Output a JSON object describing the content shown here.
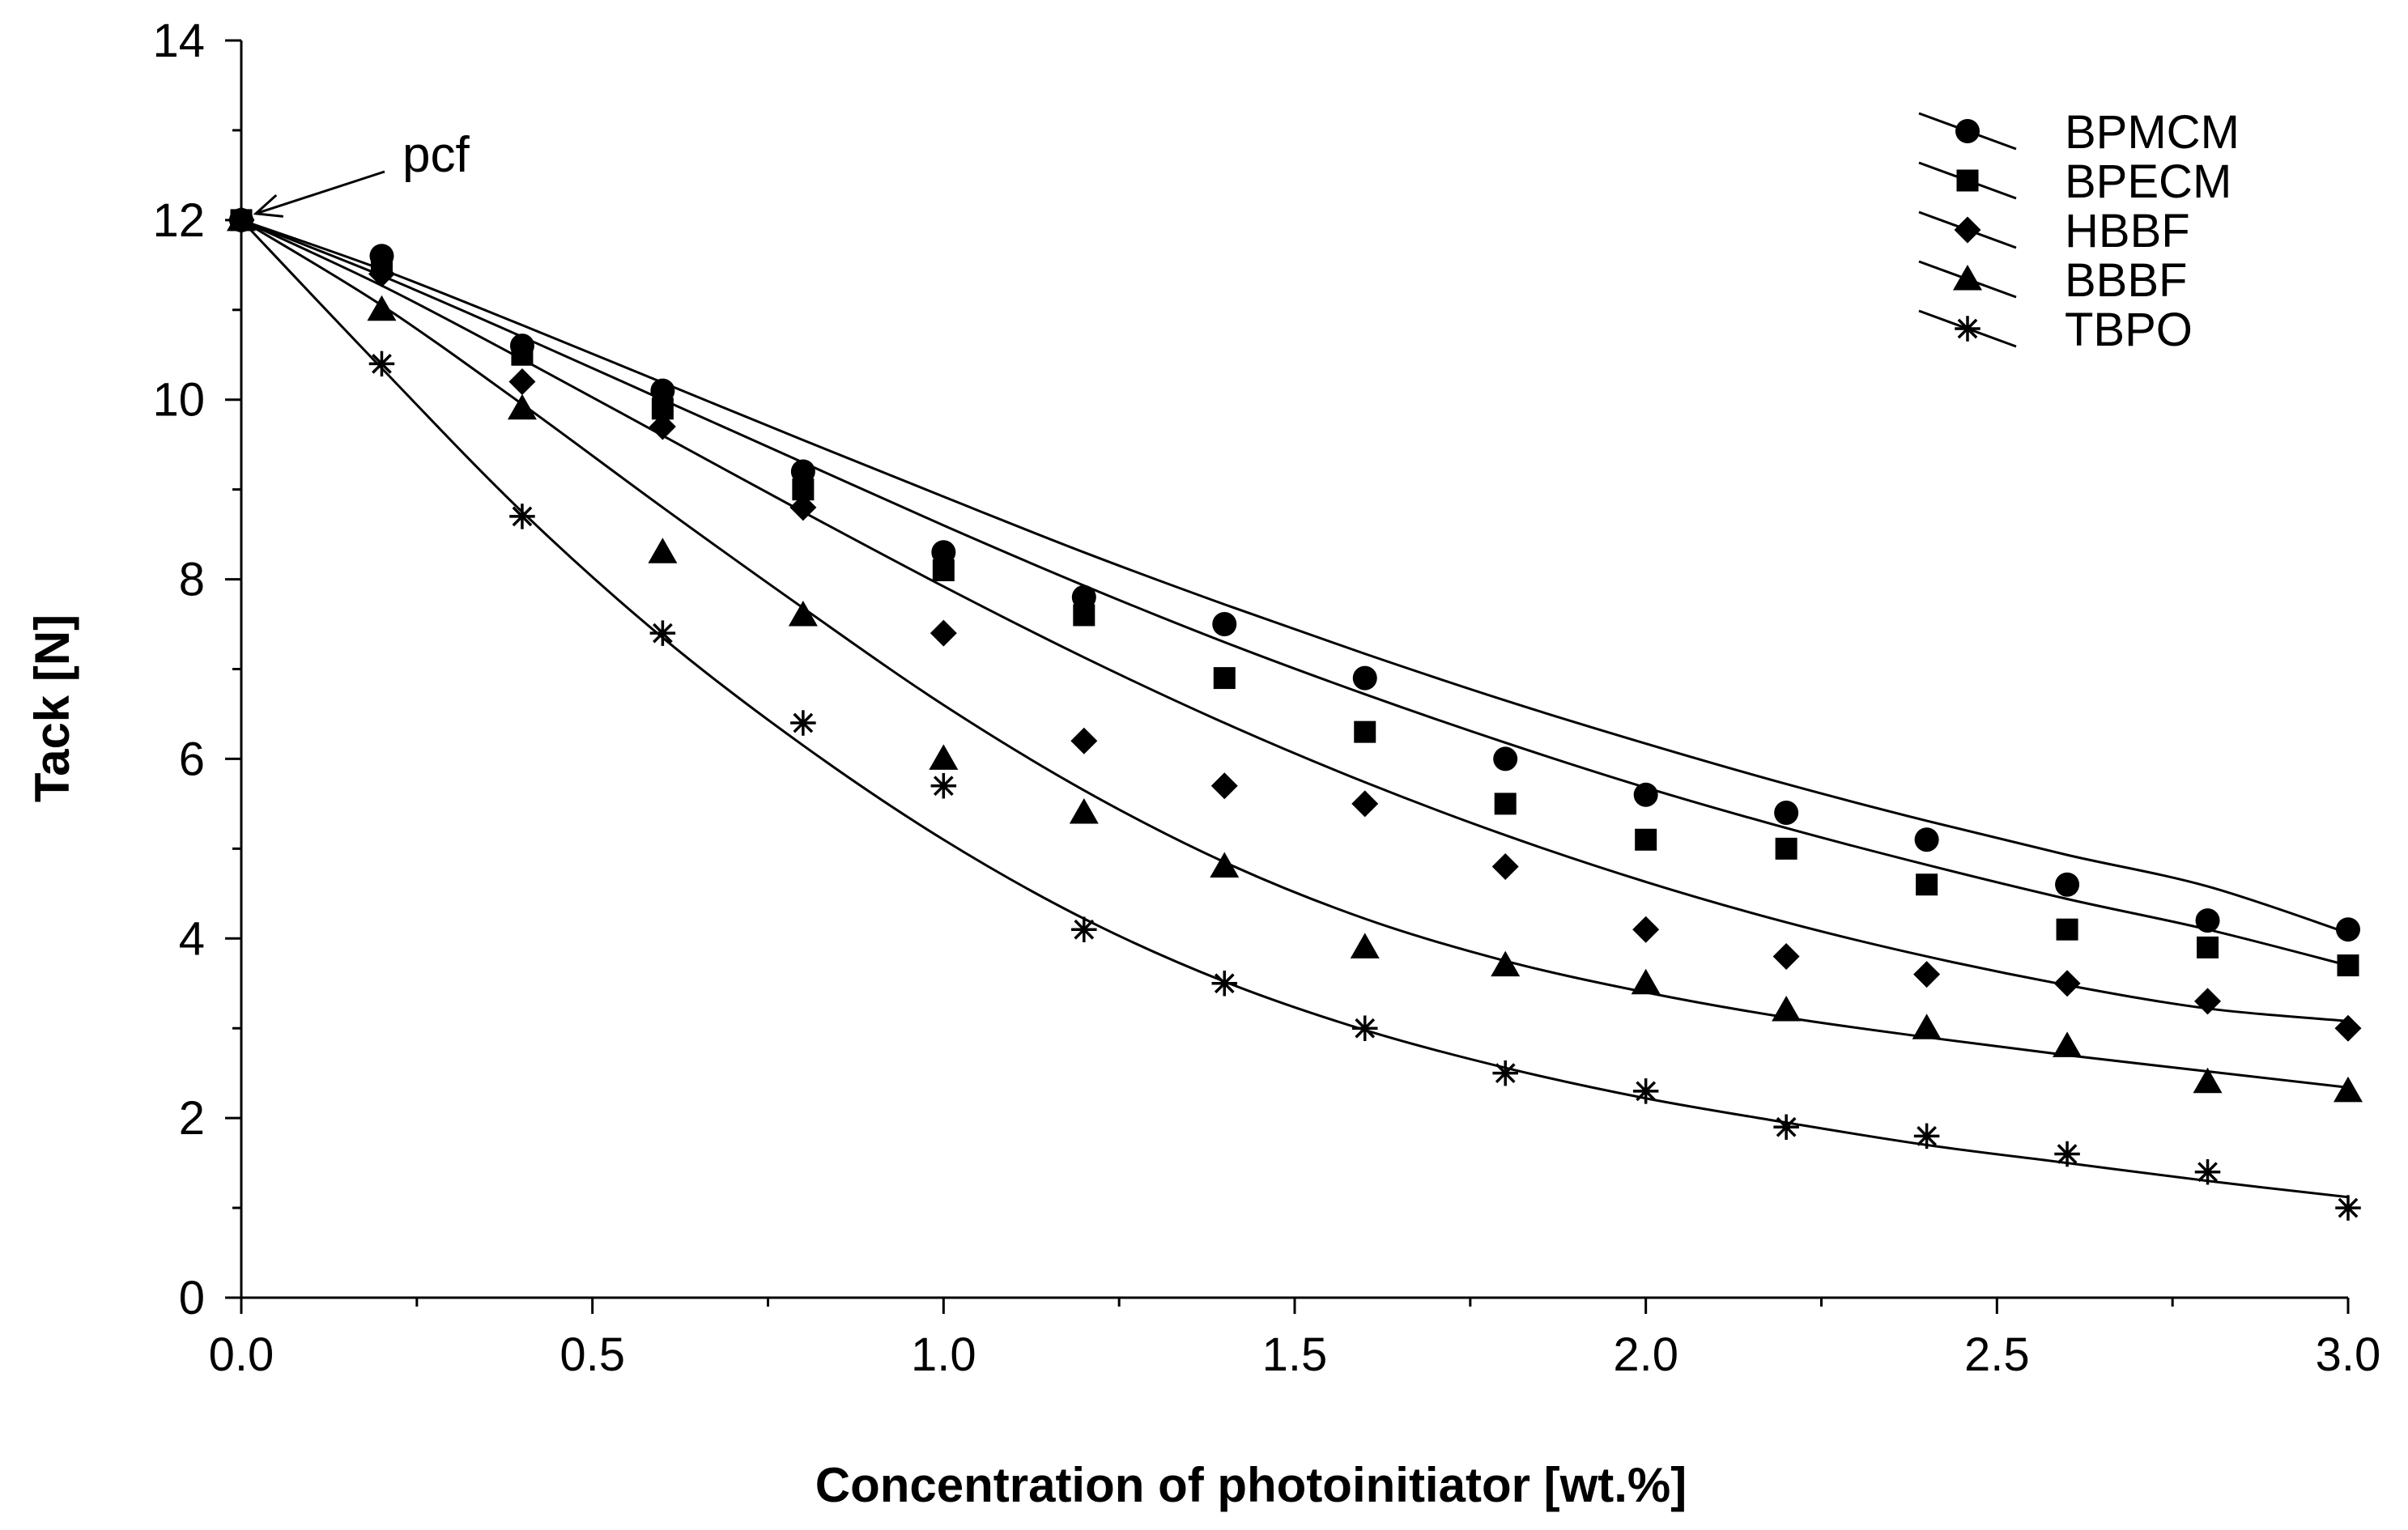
{
  "chart_data": {
    "type": "scatter",
    "title": "",
    "xlabel": "Concentration of photoinitiator [wt.%]",
    "ylabel": "Tack [N]",
    "xlim": [
      0,
      3.0
    ],
    "ylim": [
      0,
      14
    ],
    "grid": false,
    "legend_position": "top-right",
    "x_ticks": [
      "0.0",
      "0.5",
      "1.0",
      "1.5",
      "2.0",
      "2.5",
      "3.0"
    ],
    "y_ticks": [
      "0",
      "2",
      "4",
      "6",
      "8",
      "10",
      "12",
      "14"
    ],
    "annotation": {
      "text": "pcf",
      "points_to": [
        0,
        12
      ]
    },
    "x": [
      0,
      0.2,
      0.4,
      0.6,
      0.8,
      1.0,
      1.2,
      1.4,
      1.6,
      1.8,
      2.0,
      2.2,
      2.4,
      2.6,
      2.8,
      3.0
    ],
    "series": [
      {
        "name": "BPMCM",
        "marker": "circle",
        "values": [
          12.0,
          11.6,
          10.6,
          10.1,
          9.2,
          8.3,
          7.8,
          7.5,
          6.9,
          6.0,
          5.6,
          5.4,
          5.1,
          4.6,
          4.2,
          4.1
        ],
        "fit": [
          12.0,
          11.45,
          10.83,
          10.19,
          9.55,
          8.92,
          8.3,
          7.72,
          7.17,
          6.65,
          6.17,
          5.72,
          5.31,
          4.93,
          4.58,
          4.06
        ]
      },
      {
        "name": "BPECM",
        "marker": "square",
        "values": [
          12.0,
          11.5,
          10.5,
          9.9,
          9.0,
          8.1,
          7.6,
          6.9,
          6.3,
          5.5,
          5.1,
          5.0,
          4.6,
          4.1,
          3.9,
          3.7
        ],
        "fit": [
          12.0,
          11.38,
          10.7,
          10.0,
          9.3,
          8.6,
          7.93,
          7.3,
          6.72,
          6.18,
          5.68,
          5.23,
          4.82,
          4.44,
          4.1,
          3.7
        ]
      },
      {
        "name": "HBBF",
        "marker": "diamond",
        "values": [
          12.0,
          11.4,
          10.2,
          9.7,
          8.8,
          7.4,
          6.2,
          5.7,
          5.5,
          4.8,
          4.1,
          3.8,
          3.6,
          3.5,
          3.3,
          3.0
        ],
        "fit": [
          12.0,
          11.27,
          10.45,
          9.6,
          8.75,
          7.92,
          7.13,
          6.4,
          5.74,
          5.15,
          4.63,
          4.18,
          3.8,
          3.48,
          3.22,
          3.08
        ]
      },
      {
        "name": "BBBF",
        "marker": "triangle",
        "values": [
          12.0,
          11.0,
          9.9,
          8.3,
          7.6,
          6.0,
          5.4,
          4.8,
          3.9,
          3.7,
          3.5,
          3.2,
          3.0,
          2.8,
          2.4,
          2.3
        ],
        "fit": [
          12.0,
          11.05,
          9.95,
          8.8,
          7.68,
          6.6,
          5.65,
          4.85,
          4.22,
          3.75,
          3.4,
          3.12,
          2.9,
          2.7,
          2.52,
          2.34
        ]
      },
      {
        "name": "TBPO",
        "marker": "asterisk",
        "values": [
          12.0,
          10.4,
          8.7,
          7.4,
          6.4,
          5.7,
          4.1,
          3.5,
          3.0,
          2.5,
          2.3,
          1.9,
          1.8,
          1.6,
          1.4,
          1.0
        ],
        "fit": [
          12.0,
          10.35,
          8.75,
          7.35,
          6.15,
          5.1,
          4.22,
          3.52,
          2.98,
          2.56,
          2.22,
          1.95,
          1.7,
          1.5,
          1.3,
          1.12
        ]
      }
    ]
  }
}
